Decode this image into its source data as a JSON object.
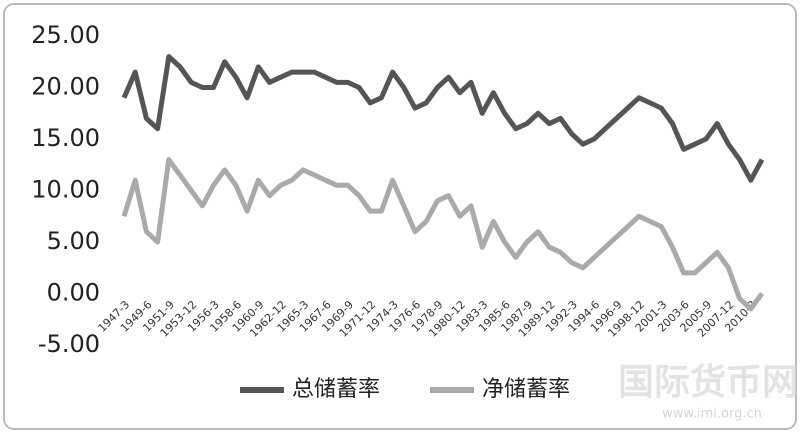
{
  "chart_data": {
    "type": "line",
    "categories": [
      "1947-3",
      null,
      "1949-6",
      null,
      "1951-9",
      null,
      "1953-12",
      null,
      "1956-3",
      null,
      "1958-6",
      null,
      "1960-9",
      null,
      "1962-12",
      null,
      "1965-3",
      null,
      "1967-6",
      null,
      "1969-9",
      null,
      "1971-12",
      null,
      "1974-3",
      null,
      "1976-6",
      null,
      "1978-9",
      null,
      "1980-12",
      null,
      "1983-3",
      null,
      "1985-6",
      null,
      "1987-9",
      null,
      "1989-12",
      null,
      "1992-3",
      null,
      "1994-6",
      null,
      "1996-9",
      null,
      "1998-12",
      null,
      "2001-3",
      null,
      "2003-6",
      null,
      "2005-9",
      null,
      "2007-12",
      null,
      "2010-3",
      null
    ],
    "series": [
      {
        "name": "总储蓄率",
        "color": "#555555",
        "values": [
          19,
          21.5,
          17,
          16,
          23,
          22,
          20.5,
          20,
          20,
          22.5,
          21,
          19,
          22,
          20.5,
          21,
          21.5,
          21.5,
          21.5,
          21,
          20.5,
          20.5,
          20,
          18.5,
          19,
          21.5,
          20,
          18,
          18.5,
          20,
          21,
          19.5,
          20.5,
          17.5,
          19.5,
          17.5,
          16,
          16.5,
          17.5,
          16.5,
          17,
          15.5,
          14.5,
          15,
          16,
          17,
          18,
          19,
          18.5,
          18,
          16.5,
          14,
          14.5,
          15,
          16.5,
          14.5,
          13,
          11,
          13
        ]
      },
      {
        "name": "净储蓄率",
        "color": "#aaaaaa",
        "values": [
          7.5,
          11,
          6,
          5,
          13,
          11.5,
          10,
          8.5,
          10.5,
          12,
          10.5,
          8,
          11,
          9.5,
          10.5,
          11,
          12,
          11.5,
          11,
          10.5,
          10.5,
          9.5,
          8,
          8,
          11,
          8.5,
          6,
          7,
          9,
          9.5,
          7.5,
          8.5,
          4.5,
          7,
          5,
          3.5,
          5,
          6,
          4.5,
          4,
          3,
          2.5,
          3.5,
          4.5,
          5.5,
          6.5,
          7.5,
          7,
          6.5,
          4.5,
          2,
          2,
          3,
          4,
          2.5,
          -0.5,
          -1.5,
          0
        ]
      }
    ],
    "ylim": [
      -5,
      25
    ],
    "yticks": [
      {
        "value": -5,
        "label": "-5.00"
      },
      {
        "value": 0,
        "label": "0.00"
      },
      {
        "value": 5,
        "label": "5.00"
      },
      {
        "value": 10,
        "label": "10.00"
      },
      {
        "value": 15,
        "label": "15.00"
      },
      {
        "value": 20,
        "label": "20.00"
      },
      {
        "value": 25,
        "label": "25.00"
      }
    ],
    "grid": false,
    "legend": "bottom",
    "watermark": "国际货币网",
    "watermark_url": "www.imi.org.cn"
  }
}
